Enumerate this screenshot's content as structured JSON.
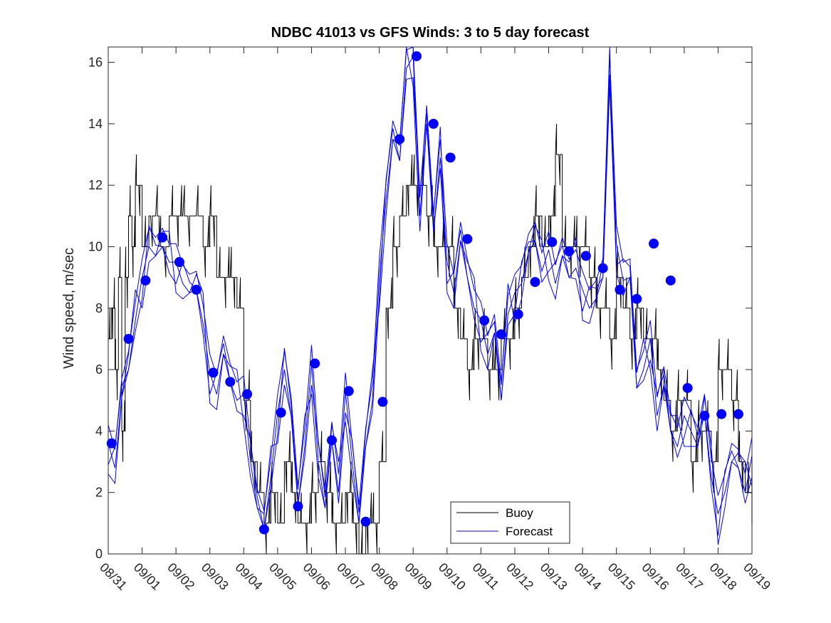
{
  "chart_data": {
    "type": "line",
    "title": "NDBC 41013 vs GFS Winds: 3 to 5 day forecast",
    "xlabel": "",
    "ylabel": "Wind speed, m/sec",
    "xlim": [
      0,
      19
    ],
    "ylim": [
      0,
      16.5
    ],
    "yticks": [
      0,
      2,
      4,
      6,
      8,
      10,
      12,
      14,
      16
    ],
    "xticks": [
      {
        "x": 0,
        "label": "08/31"
      },
      {
        "x": 1,
        "label": "09/01"
      },
      {
        "x": 2,
        "label": "09/02"
      },
      {
        "x": 3,
        "label": "09/03"
      },
      {
        "x": 4,
        "label": "09/04"
      },
      {
        "x": 5,
        "label": "09/05"
      },
      {
        "x": 6,
        "label": "09/06"
      },
      {
        "x": 7,
        "label": "09/07"
      },
      {
        "x": 8,
        "label": "09/08"
      },
      {
        "x": 9,
        "label": "09/09"
      },
      {
        "x": 10,
        "label": "09/10"
      },
      {
        "x": 11,
        "label": "09/11"
      },
      {
        "x": 12,
        "label": "09/12"
      },
      {
        "x": 13,
        "label": "09/13"
      },
      {
        "x": 14,
        "label": "09/14"
      },
      {
        "x": 15,
        "label": "09/15"
      },
      {
        "x": 16,
        "label": "09/16"
      },
      {
        "x": 17,
        "label": "09/17"
      },
      {
        "x": 18,
        "label": "09/18"
      },
      {
        "x": 19,
        "label": "09/19"
      }
    ],
    "grid": false,
    "legend": {
      "position": "bottom-center",
      "entries": [
        "Buoy",
        "Forecast"
      ]
    },
    "colors": {
      "buoy": "#000000",
      "forecast": "#0000ff",
      "axis": "#262626"
    },
    "series": [
      {
        "name": "Buoy",
        "style": "step-noisy",
        "x": [
          0,
          0.1,
          0.2,
          0.3,
          0.4,
          0.5,
          0.6,
          0.7,
          0.8,
          1.0,
          1.2,
          1.5,
          1.8,
          2.0,
          2.2,
          2.5,
          2.8,
          3.0,
          3.2,
          3.4,
          3.6,
          3.8,
          4.0,
          4.2,
          4.4,
          4.6,
          4.8,
          5.0,
          5.2,
          5.4,
          5.6,
          5.8,
          6.0,
          6.2,
          6.4,
          6.6,
          6.8,
          7.0,
          7.2,
          7.4,
          7.6,
          7.8,
          8.0,
          8.2,
          8.4,
          8.6,
          8.8,
          9.0,
          9.2,
          9.4,
          9.6,
          9.8,
          10.0,
          10.2,
          10.4,
          10.6,
          10.8,
          11.0,
          11.2,
          11.4,
          11.6,
          11.8,
          12.0,
          12.2,
          12.4,
          12.6,
          12.8,
          13.0,
          13.2,
          13.4,
          13.6,
          13.8,
          14.0,
          14.2,
          14.4,
          14.6,
          14.8,
          15.0,
          15.2,
          15.4,
          15.6,
          15.8,
          16.0,
          16.2,
          16.4,
          16.6,
          16.8,
          17.0,
          17.2,
          17.4,
          17.6,
          17.8,
          18.0,
          18.2,
          18.4,
          18.6,
          18.8,
          19.0
        ],
        "values": [
          7,
          8,
          6,
          9,
          4,
          9,
          11,
          10,
          12,
          10,
          11,
          10,
          11,
          11,
          11,
          11,
          10,
          11,
          9,
          9,
          9,
          8,
          5,
          3,
          2,
          1,
          2,
          1,
          3,
          2,
          1,
          1,
          2,
          3,
          2,
          1,
          1,
          2,
          1,
          0,
          1,
          1,
          3,
          8,
          10,
          11,
          12,
          12,
          12,
          11,
          10,
          10,
          10,
          8,
          7,
          6,
          7,
          7,
          6,
          6,
          7,
          7,
          8,
          9,
          10,
          11,
          10,
          11,
          13,
          10,
          10,
          10,
          10,
          9,
          8,
          8,
          7,
          9,
          8,
          7,
          8,
          7,
          7,
          6,
          5,
          4,
          5,
          5,
          3,
          4,
          4,
          3,
          6,
          6,
          5,
          3,
          2,
          2
        ]
      },
      {
        "name": "Forecast",
        "x": [
          0,
          0.2,
          0.4,
          0.6,
          0.8,
          1.0,
          1.2,
          1.4,
          1.6,
          1.8,
          2.0,
          2.2,
          2.4,
          2.6,
          2.8,
          3.0,
          3.2,
          3.4,
          3.6,
          3.8,
          4.0,
          4.2,
          4.4,
          4.6,
          4.8,
          5.0,
          5.2,
          5.4,
          5.6,
          5.8,
          6.0,
          6.2,
          6.4,
          6.6,
          6.8,
          7.0,
          7.2,
          7.4,
          7.6,
          7.8,
          8.0,
          8.2,
          8.4,
          8.6,
          8.8,
          9.0,
          9.2,
          9.4,
          9.6,
          9.8,
          10.0,
          10.2,
          10.4,
          10.6,
          10.8,
          11.0,
          11.2,
          11.4,
          11.6,
          11.8,
          12.0,
          12.2,
          12.4,
          12.6,
          12.8,
          13.0,
          13.2,
          13.4,
          13.6,
          13.8,
          14.0,
          14.2,
          14.4,
          14.6,
          14.8,
          15.0,
          15.2,
          15.4,
          15.6,
          15.8,
          16.0,
          16.2,
          16.4,
          16.6,
          16.8,
          17.0,
          17.2,
          17.4,
          17.6,
          17.8,
          18.0,
          18.2,
          18.4,
          18.6,
          18.8,
          19.0
        ],
        "values": [
          3.6,
          2.8,
          5.1,
          6.0,
          7.6,
          9.0,
          10.0,
          9.7,
          10.0,
          9.5,
          9.5,
          8.8,
          8.5,
          8.6,
          7.5,
          5.9,
          5.2,
          6.5,
          5.6,
          5.0,
          5.2,
          3.0,
          1.5,
          0.8,
          2.5,
          4.6,
          6.0,
          4.5,
          1.6,
          3.5,
          6.2,
          3.0,
          1.5,
          3.7,
          2.0,
          5.3,
          3.0,
          1.0,
          3.5,
          5.0,
          9.0,
          11.5,
          13.5,
          12.8,
          15.8,
          16.2,
          11.0,
          14.0,
          10.5,
          12.9,
          9.5,
          8.5,
          10.2,
          9.0,
          8.0,
          7.6,
          6.5,
          7.2,
          5.0,
          7.8,
          8.5,
          8.8,
          9.8,
          10.2,
          9.2,
          9.9,
          8.8,
          9.7,
          9.0,
          9.3,
          8.6,
          8.0,
          8.3,
          9.0,
          15.6,
          10.1,
          8.9,
          9.0,
          5.4,
          6.0,
          7.0,
          4.5,
          5.5,
          4.0,
          3.5,
          4.5,
          4.0,
          3.5,
          4.6,
          2.5,
          1.3,
          2.0,
          3.0,
          2.8,
          2.0,
          3.2
        ]
      },
      {
        "name": "Forecast (markers)",
        "x": [
          0.1,
          0.6,
          1.1,
          1.6,
          2.1,
          2.6,
          3.1,
          3.6,
          4.1,
          4.6,
          5.1,
          5.6,
          6.1,
          6.6,
          7.1,
          7.6,
          8.1,
          8.6,
          9.1,
          9.6,
          10.1,
          10.6,
          11.1,
          11.6,
          12.1,
          12.6,
          13.1,
          13.6,
          14.1,
          14.6,
          15.1,
          15.6,
          16.1,
          16.6,
          17.1,
          17.6,
          18.1,
          18.6
        ],
        "values": [
          3.6,
          7.0,
          8.9,
          10.3,
          9.5,
          8.6,
          5.9,
          5.6,
          5.2,
          0.8,
          4.6,
          1.55,
          6.2,
          3.7,
          5.3,
          1.05,
          4.95,
          13.5,
          16.2,
          14.0,
          12.9,
          10.25,
          7.6,
          7.15,
          7.8,
          8.85,
          10.15,
          9.85,
          9.7,
          9.3,
          8.6,
          8.3,
          10.1,
          8.9,
          5.4,
          4.5,
          4.55,
          4.55
        ]
      }
    ]
  }
}
